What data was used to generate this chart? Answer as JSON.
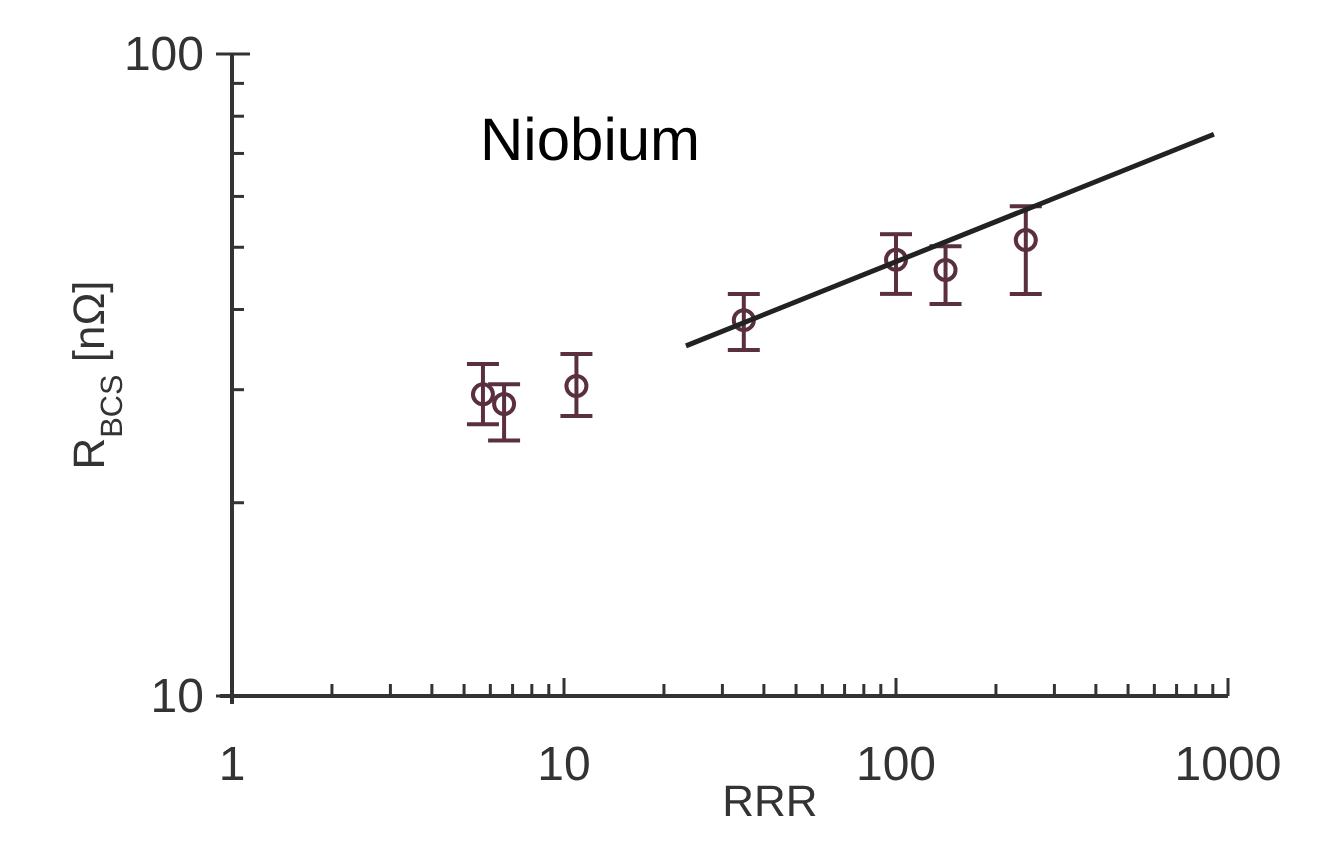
{
  "chart_data": {
    "type": "scatter",
    "title": "Niobium",
    "xlabel": "RRR",
    "ylabel": "R$_{BCS}$ [nΩ]",
    "log": "xy",
    "grid": false,
    "marker": "circle",
    "xlim": [
      1,
      1000
    ],
    "ylim": [
      10,
      100
    ],
    "xticks": [
      1,
      {
        "value": 2,
        "label": null
      },
      {
        "value": 3,
        "label": null
      },
      {
        "value": 4,
        "label": null
      },
      {
        "value": 5,
        "label": null
      },
      {
        "value": 6,
        "label": null
      },
      {
        "value": 7,
        "label": null
      },
      {
        "value": 8,
        "label": null
      },
      {
        "value": 9,
        "label": null
      },
      10,
      {
        "value": 20,
        "label": null
      },
      {
        "value": 30,
        "label": null
      },
      {
        "value": 40,
        "label": null
      },
      {
        "value": 50,
        "label": null
      },
      {
        "value": 60,
        "label": null
      },
      {
        "value": 70,
        "label": null
      },
      {
        "value": 80,
        "label": null
      },
      {
        "value": 90,
        "label": null
      },
      100,
      {
        "value": 200,
        "label": null
      },
      {
        "value": 300,
        "label": null
      },
      {
        "value": 400,
        "label": null
      },
      {
        "value": 500,
        "label": null
      },
      {
        "value": 600,
        "label": null
      },
      {
        "value": 700,
        "label": null
      },
      {
        "value": 800,
        "label": null
      },
      {
        "value": 900,
        "label": null
      },
      1000
    ],
    "yticks": [
      10,
      {
        "value": 20,
        "label": null
      },
      {
        "value": 30,
        "label": null
      },
      {
        "value": 40,
        "label": null
      },
      {
        "value": 50,
        "label": null
      },
      {
        "value": 60,
        "label": null
      },
      {
        "value": 70,
        "label": null
      },
      {
        "value": 80,
        "label": null
      },
      {
        "value": 90,
        "label": null
      },
      100
    ],
    "series": [
      {
        "color": "#5a3040",
        "x": [
          5.7,
          6.6,
          10.9,
          34.8,
          100,
          141,
          246
        ],
        "values": [
          29.5,
          28.5,
          30.4,
          38.5,
          47.8,
          46.1,
          51.3
        ],
        "errors": [
          [
            26.5,
            32.9
          ],
          [
            25.0,
            30.6
          ],
          [
            27.3,
            34.1
          ],
          [
            34.6,
            42.3
          ],
          [
            42.3,
            52.4
          ],
          [
            40.8,
            50.2
          ],
          [
            42.3,
            57.9
          ]
        ]
      },
      {
        "type": "line",
        "color": "#222222",
        "marker": "none",
        "line_style": "solid",
        "x": [
          23.3,
          907
        ],
        "values": [
          35.1,
          75.0
        ]
      }
    ]
  }
}
